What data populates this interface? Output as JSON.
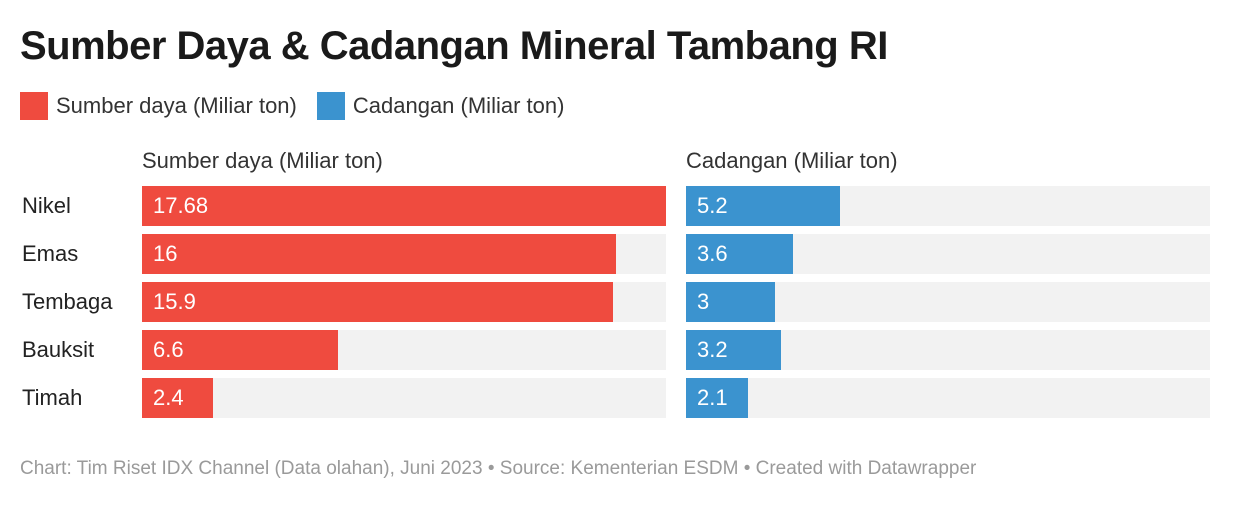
{
  "title": "Sumber Daya & Cadangan Mineral Tambang RI",
  "legend": [
    {
      "label": "Sumber daya (Miliar ton)",
      "color": "#ef4b3f"
    },
    {
      "label": "Cadangan (Miliar ton)",
      "color": "#3b93cf"
    }
  ],
  "footer": "Chart: Tim Riset IDX Channel (Data olahan), Juni 2023 • Source: Kementerian ESDM • Created with Datawrapper",
  "chart_data": {
    "type": "bar",
    "orientation": "horizontal",
    "categories": [
      "Nikel",
      "Emas",
      "Tembaga",
      "Bauksit",
      "Timah"
    ],
    "series": [
      {
        "name": "Sumber daya (Miliar ton)",
        "panel_title": "Sumber daya (Miliar ton)",
        "color": "#ef4b3f",
        "values": [
          17.68,
          16,
          15.9,
          6.6,
          2.4
        ],
        "labels": [
          "17.68",
          "16",
          "15.9",
          "6.6",
          "2.4"
        ],
        "xlim": [
          0,
          17.68
        ]
      },
      {
        "name": "Cadangan (Miliar ton)",
        "panel_title": "Cadangan (Miliar ton)",
        "color": "#3b93cf",
        "values": [
          5.2,
          3.6,
          3,
          3.2,
          2.1
        ],
        "labels": [
          "5.2",
          "3.6",
          "3",
          "3.2",
          "2.1"
        ],
        "xlim": [
          0,
          17.68
        ]
      }
    ],
    "title": "Sumber Daya & Cadangan Mineral Tambang RI",
    "legend_position": "top-left",
    "grid": false
  }
}
